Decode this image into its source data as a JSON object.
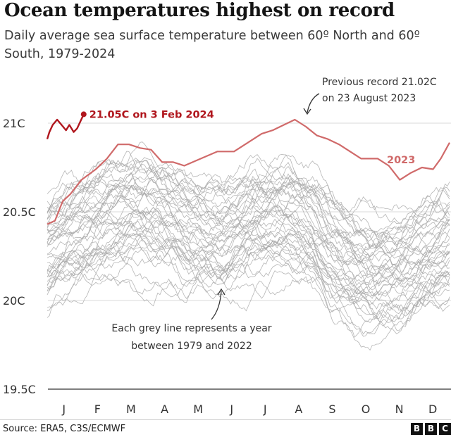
{
  "title": "Ocean temperatures highest on record",
  "subtitle": "Daily average sea surface temperature between 60º North and 60º South, 1979-2024",
  "source": "Source: ERA5, C3S/ECMWF",
  "logo": [
    "B",
    "B",
    "C"
  ],
  "colors": {
    "grey_line": "#a9a9a9",
    "line_2023": "#d06a6a",
    "line_2024": "#b0161d",
    "gridline": "#d8d8d8",
    "axis": "#333333"
  },
  "annotations": {
    "record_2024": "21.05C on 3 Feb 2024",
    "previous_record_line1": "Previous record 21.02C",
    "previous_record_line2": "on 23 August 2023",
    "label_2023": "2023",
    "grey_note_line1": "Each grey line represents a year",
    "grey_note_line2": "between 1979 and 2022"
  },
  "chart_data": {
    "type": "line",
    "x_axis": {
      "tick_labels": [
        "J",
        "F",
        "M",
        "A",
        "M",
        "J",
        "J",
        "A",
        "S",
        "O",
        "N",
        "D"
      ]
    },
    "y_axis": {
      "ticks": [
        19.5,
        20,
        20.5,
        21
      ],
      "tick_labels": [
        "19.5C",
        "20C",
        "20.5C",
        "21C"
      ],
      "ylim": [
        19.5,
        21.2
      ]
    },
    "grid": "horizontal",
    "series": [
      {
        "name": "2024",
        "x_day": [
          1,
          3,
          6,
          10,
          14,
          18,
          21,
          25,
          28,
          31,
          34
        ],
        "values": [
          20.91,
          20.95,
          20.99,
          21.02,
          20.99,
          20.96,
          20.99,
          20.95,
          20.97,
          21.01,
          21.05
        ]
      },
      {
        "name": "2023",
        "x_day": [
          1,
          8,
          15,
          22,
          32,
          45,
          55,
          65,
          75,
          85,
          95,
          105,
          115,
          125,
          140,
          155,
          170,
          185,
          195,
          205,
          215,
          225,
          235,
          245,
          255,
          265,
          275,
          285,
          300,
          310,
          320,
          330,
          340,
          350,
          357,
          365
        ],
        "values": [
          20.43,
          20.45,
          20.56,
          20.6,
          20.68,
          20.74,
          20.8,
          20.88,
          20.88,
          20.86,
          20.85,
          20.78,
          20.78,
          20.76,
          20.8,
          20.84,
          20.84,
          20.9,
          20.94,
          20.96,
          20.99,
          21.02,
          20.98,
          20.93,
          20.91,
          20.88,
          20.84,
          20.8,
          20.8,
          20.76,
          20.68,
          20.72,
          20.75,
          20.74,
          20.8,
          20.89
        ]
      }
    ],
    "grey_years": {
      "label": "Each grey line represents a year between 1979 and 2022",
      "first_year": 1979,
      "last_year": 2022,
      "seasonal_profile_x_day": [
        1,
        30,
        60,
        80,
        100,
        130,
        160,
        190,
        220,
        240,
        260,
        280,
        300,
        320,
        345,
        365
      ],
      "seasonal_profile_offset": [
        0.0,
        0.12,
        0.2,
        0.22,
        0.2,
        0.12,
        0.08,
        0.16,
        0.2,
        0.14,
        0.0,
        -0.1,
        -0.12,
        -0.1,
        -0.02,
        0.04
      ],
      "baseline_first_year": 20.0,
      "baseline_last_year": 20.55
    }
  }
}
